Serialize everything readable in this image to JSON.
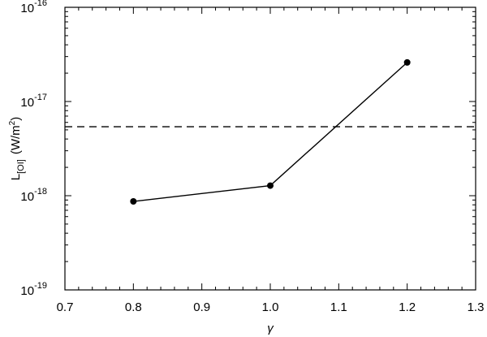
{
  "chart_data": {
    "type": "line",
    "title": "",
    "xlabel": "γ",
    "ylabel": {
      "main": "L",
      "subscript": "[OI]",
      "units": "(W/m",
      "units_sup": "2",
      "units_close": ")"
    },
    "xlim": [
      0.7,
      1.3
    ],
    "ylim": [
      1e-19,
      1e-16
    ],
    "yscale": "log",
    "grid": false,
    "x_ticks": [
      "0.7",
      "0.8",
      "0.9",
      "1.0",
      "1.1",
      "1.2",
      "1.3"
    ],
    "y_ticks": [
      {
        "base": "10",
        "exp": "-19"
      },
      {
        "base": "10",
        "exp": "-18"
      },
      {
        "base": "10",
        "exp": "-17"
      },
      {
        "base": "10",
        "exp": "-16"
      }
    ],
    "series": [
      {
        "x": [
          0.8,
          1.0,
          1.2
        ],
        "y": [
          8.7e-19,
          1.28e-18,
          2.6e-17
        ],
        "style": "solid",
        "marker": "circle",
        "color": "#000000"
      }
    ],
    "reference_lines": [
      {
        "y": 5.4e-18,
        "style": "dashed",
        "color": "#000000"
      }
    ]
  }
}
